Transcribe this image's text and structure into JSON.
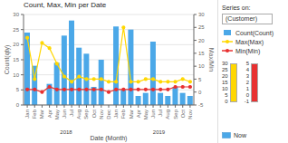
{
  "chart_data": {
    "type": "bar",
    "title": "Count, Max, Min per Date",
    "xlabel": "Date (Month)",
    "ylabel": "Count(qty)",
    "y2label": "Max/Min",
    "categories": [
      "Jan",
      "Feb",
      "Mar",
      "Apr",
      "May",
      "Jun",
      "Jul",
      "Aug",
      "Sep",
      "Oct",
      "Nov",
      "Dec",
      "Jan",
      "Feb",
      "Mar",
      "Apr",
      "May",
      "Jun",
      "Jul",
      "Aug",
      "Sep",
      "Oct",
      "Nov"
    ],
    "series": [
      {
        "name": "Count(Count)",
        "type": "bar",
        "color": "#4ba8e8",
        "values": [
          24,
          13,
          0,
          7,
          14,
          23,
          28,
          19,
          17,
          6,
          15,
          0,
          26,
          5,
          25,
          3,
          4,
          21,
          4,
          3,
          6,
          4,
          3
        ]
      },
      {
        "name": "Max(Max)",
        "type": "line",
        "color": "#ffd700",
        "marker": "circle",
        "axis": "y2",
        "values": [
          21,
          5,
          19,
          17,
          11,
          6,
          4,
          6,
          5,
          5,
          5,
          4,
          4,
          25,
          4,
          4,
          5,
          5,
          4,
          4,
          4,
          5,
          4
        ]
      },
      {
        "name": "Min(Min)",
        "type": "line",
        "color": "#e83030",
        "marker": "circle",
        "axis": "y2",
        "values": [
          1,
          1,
          0,
          2,
          1,
          1,
          1,
          1,
          1,
          1,
          1,
          0,
          1,
          1,
          1,
          1,
          1,
          1,
          1,
          1,
          2,
          2,
          2
        ]
      }
    ],
    "ylim": [
      0,
      30
    ],
    "yticks": [
      0,
      5,
      10,
      15,
      20,
      25,
      30
    ],
    "y2lim": [
      -5,
      30
    ],
    "y2ticks": [
      -5,
      0,
      5,
      10,
      15,
      20,
      25,
      30
    ],
    "grid": true,
    "legend": "right",
    "annotations": [
      {
        "text": "2018",
        "x": 5.5
      },
      {
        "text": "2019",
        "x": 17.5
      },
      {
        "text": "Series on:"
      },
      {
        "text": "(Customer)"
      },
      {
        "text": "Now"
      }
    ],
    "color_scales": [
      {
        "color": "#ffd700",
        "ticks": [
          30,
          25,
          20,
          15,
          10,
          5,
          0
        ]
      },
      {
        "color": "#e83030",
        "ticks": [
          5,
          4,
          3,
          2,
          1,
          0,
          -1
        ]
      }
    ]
  }
}
